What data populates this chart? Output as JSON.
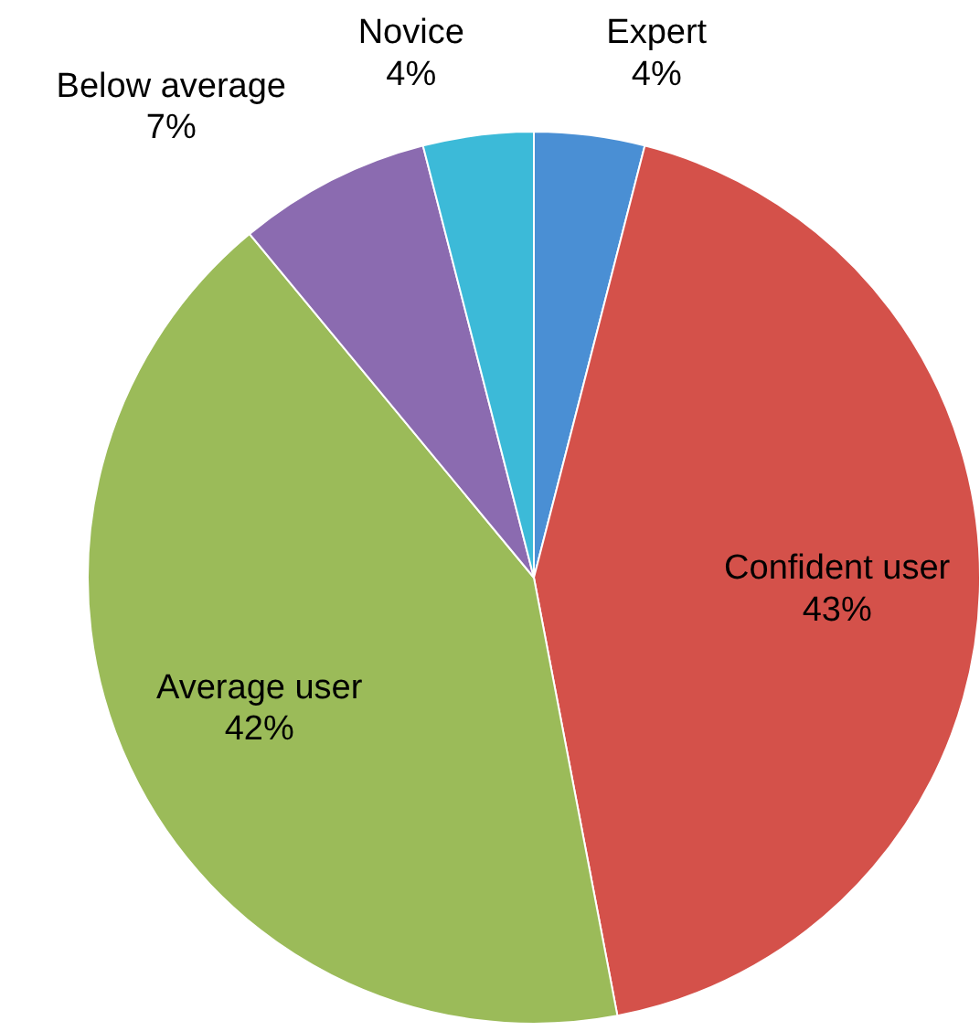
{
  "chart_data": {
    "type": "pie",
    "categories": [
      "Expert",
      "Confident user",
      "Average user",
      "Below average",
      "Novice"
    ],
    "values": [
      4,
      43,
      42,
      7,
      4
    ],
    "colors": [
      "#4a8fd4",
      "#d4514a",
      "#9bbb59",
      "#8b6bb0",
      "#3cbad8"
    ],
    "value_labels": [
      "4%",
      "43%",
      "42%",
      "7%",
      "4%"
    ]
  }
}
